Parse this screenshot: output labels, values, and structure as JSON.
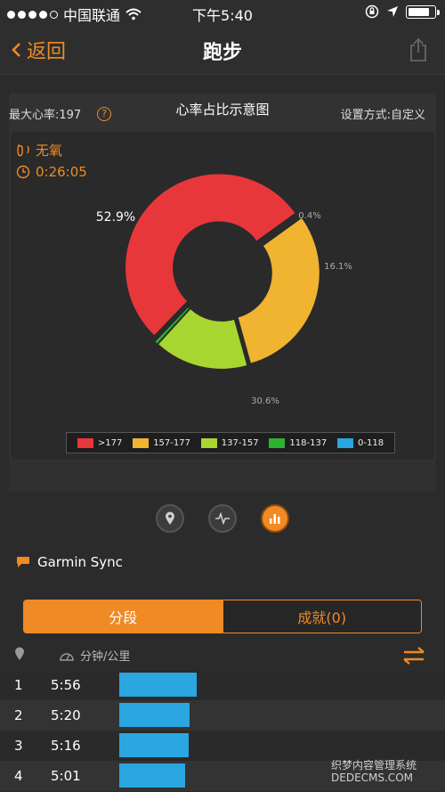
{
  "status_bar": {
    "carrier": "中国联通",
    "time": "下午5:40",
    "signal_filled": 4,
    "signal_total": 5,
    "battery_level": 0.9
  },
  "nav": {
    "back_label": "返回",
    "title": "跑步"
  },
  "card": {
    "max_hr_label": "最大心率:197",
    "title": "心率占比示意图",
    "setting_label": "设置方式:自定义",
    "zone_type": "无氧",
    "duration": "0:26:05"
  },
  "chart_data": {
    "type": "pie",
    "donut": true,
    "slices": [
      {
        "label": ">177",
        "value": 52.9,
        "value_label": "52.9%",
        "color": "#e8373a"
      },
      {
        "label": "157-177",
        "value": 30.6,
        "value_label": "30.6%",
        "color": "#f0b430"
      },
      {
        "label": "137-157",
        "value": 16.1,
        "value_label": "16.1%",
        "color": "#a8d630"
      },
      {
        "label": "118-137",
        "value": 0.4,
        "value_label": "0.4%",
        "color": "#2bb232"
      },
      {
        "label": "0-118",
        "value": 0,
        "value_label": "",
        "color": "#2aa6e0"
      }
    ],
    "legend_position": "bottom"
  },
  "view_icons": [
    "location-pin-icon",
    "heartbeat-icon",
    "bar-chart-icon"
  ],
  "sync_label": "Garmin Sync",
  "segment": {
    "tab_splits": "分段",
    "tab_achievements": "成就(0)"
  },
  "list_header": {
    "pace_label": "分钟/公里"
  },
  "splits": [
    {
      "index": "1",
      "pace": "5:56",
      "bar_fraction": 0.93
    },
    {
      "index": "2",
      "pace": "5:20",
      "bar_fraction": 0.84
    },
    {
      "index": "3",
      "pace": "5:16",
      "bar_fraction": 0.83
    },
    {
      "index": "4",
      "pace": "5:01",
      "bar_fraction": 0.79
    }
  ],
  "watermark": {
    "line1": "织梦内容管理系统",
    "line2": "DEDECMS.COM"
  },
  "colors": {
    "accent": "#f08a24",
    "bar": "#2aa6e0",
    "background": "#2b2b2b"
  }
}
